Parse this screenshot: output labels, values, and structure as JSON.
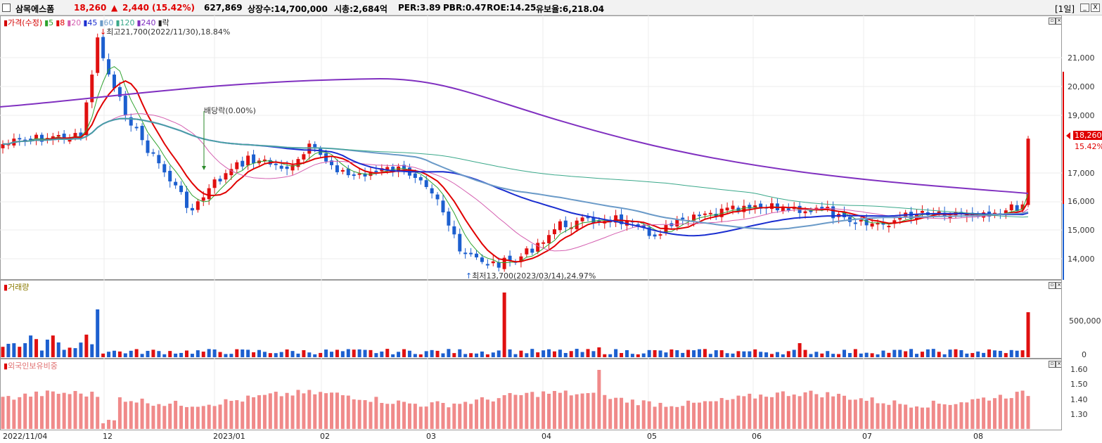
{
  "header": {
    "stock_name": "삼목에스폼",
    "price": "18,260",
    "change_arrow": "▲",
    "change": "2,440",
    "change_pct": "(15.42%)",
    "volume": "627,869",
    "shares": "상장수:14,700,000",
    "market_cap": "시총:2,684억",
    "per": "PER:3.89",
    "pbr": "PBR:0.47",
    "roe": "ROE:14.25",
    "reserve": "유보율:6,218.04",
    "period_label": "[1일]",
    "btn_min": "_",
    "btn_close": "X"
  },
  "price_panel": {
    "legend": [
      {
        "text": "가격(수정)",
        "color": "#d40000"
      },
      {
        "text": "5",
        "color": "#2ea22e"
      },
      {
        "text": "8",
        "color": "#e00000"
      },
      {
        "text": "20",
        "color": "#d45fb0"
      },
      {
        "text": "45",
        "color": "#1a2ed0"
      },
      {
        "text": "60",
        "color": "#6a9ac8"
      },
      {
        "text": "120",
        "color": "#3aa88a"
      },
      {
        "text": "240",
        "color": "#8030c0"
      },
      {
        "text": "락",
        "color": "#222222"
      }
    ],
    "high_note": "최고21,700(2022/11/30),18.84%",
    "low_note": "최저13,700(2023/03/14),24.97%",
    "dividend_note": "배당락(0.00%)",
    "y_ticks": [
      "21,000",
      "20,000",
      "19,000",
      "17,000",
      "16,000",
      "15,000",
      "14,000"
    ],
    "current_price_tag": "18,260",
    "current_pct_tag": "15.42%"
  },
  "volume_panel": {
    "title": "거래량",
    "y_ticks": [
      "500,000",
      "0"
    ]
  },
  "foreign_panel": {
    "title": "외국인보유비중",
    "y_ticks": [
      "1.60",
      "1.50",
      "1.40",
      "1.30"
    ]
  },
  "x_labels": [
    "2022/11/04",
    "12",
    "2023/01",
    "02",
    "03",
    "04",
    "05",
    "06",
    "07",
    "08"
  ],
  "colors": {
    "up": "#e01010",
    "down": "#1c5fcf",
    "ma5": "#2ea22e",
    "ma8": "#e00000",
    "ma20": "#d45fb0",
    "ma45": "#1a2ed0",
    "ma60": "#6a9ac8",
    "ma120": "#3aa88a",
    "ma240": "#8030c0",
    "foreign_bar": "#f08a8a"
  }
}
